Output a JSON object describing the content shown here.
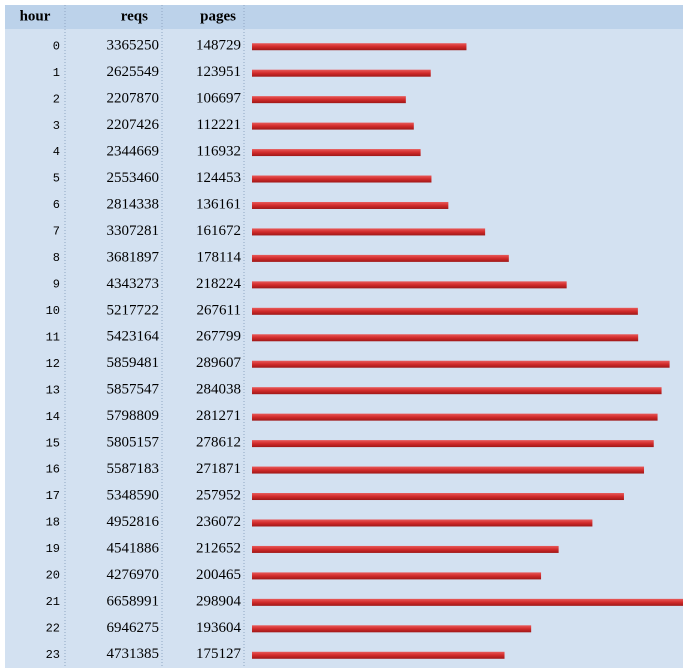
{
  "table": {
    "columns": [
      "hour",
      "reqs",
      "pages"
    ],
    "rows": [
      [
        0,
        3365250,
        148729
      ],
      [
        1,
        2625549,
        123951
      ],
      [
        2,
        2207870,
        106697
      ],
      [
        3,
        2207426,
        112221
      ],
      [
        4,
        2344669,
        116932
      ],
      [
        5,
        2553460,
        124453
      ],
      [
        6,
        2814338,
        136161
      ],
      [
        7,
        3307281,
        161672
      ],
      [
        8,
        3681897,
        178114
      ],
      [
        9,
        4343273,
        218224
      ],
      [
        10,
        5217722,
        267611
      ],
      [
        11,
        5423164,
        267799
      ],
      [
        12,
        5859481,
        289607
      ],
      [
        13,
        5857547,
        284038
      ],
      [
        14,
        5798809,
        281271
      ],
      [
        15,
        5805157,
        278612
      ],
      [
        16,
        5587183,
        271871
      ],
      [
        17,
        5348590,
        257952
      ],
      [
        18,
        4952816,
        236072
      ],
      [
        19,
        4541886,
        212652
      ],
      [
        20,
        4276970,
        200465
      ],
      [
        21,
        6658991,
        298904
      ],
      [
        22,
        6946275,
        193604
      ],
      [
        23,
        4731385,
        175127
      ]
    ]
  }
}
